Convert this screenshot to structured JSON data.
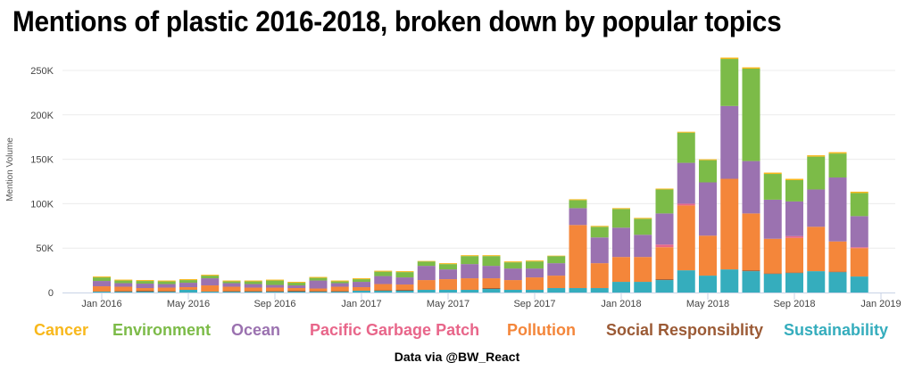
{
  "chart_data": {
    "type": "bar",
    "stacked": true,
    "title": "Mentions of plastic 2016-2018, broken down by popular topics",
    "xlabel": "",
    "ylabel": "Mention Volume",
    "ylim": [
      0,
      260000
    ],
    "yticks": [
      0,
      50000,
      100000,
      150000,
      200000,
      250000
    ],
    "ytick_labels": [
      "0",
      "50K",
      "100K",
      "150K",
      "200K",
      "250K"
    ],
    "xtick_labels": [
      {
        "label": "Jan 2016",
        "month_index": 0
      },
      {
        "label": "May 2016",
        "month_index": 4
      },
      {
        "label": "Sep 2016",
        "month_index": 8
      },
      {
        "label": "Jan 2017",
        "month_index": 12
      },
      {
        "label": "May 2017",
        "month_index": 16
      },
      {
        "label": "Sep 2017",
        "month_index": 20
      },
      {
        "label": "Jan 2018",
        "month_index": 24
      },
      {
        "label": "May 2018",
        "month_index": 28
      },
      {
        "label": "Sep 2018",
        "month_index": 32
      },
      {
        "label": "Jan 2019",
        "month_index": 36
      }
    ],
    "grid": true,
    "legend_position": "bottom",
    "categories": [
      "Jan 2016",
      "Feb 2016",
      "Mar 2016",
      "Apr 2016",
      "May 2016",
      "Jun 2016",
      "Jul 2016",
      "Aug 2016",
      "Sep 2016",
      "Oct 2016",
      "Nov 2016",
      "Dec 2016",
      "Jan 2017",
      "Feb 2017",
      "Mar 2017",
      "Apr 2017",
      "May 2017",
      "Jun 2017",
      "Jul 2017",
      "Aug 2017",
      "Sep 2017",
      "Oct 2017",
      "Nov 2017",
      "Dec 2017",
      "Jan 2018",
      "Feb 2018",
      "Mar 2018",
      "Apr 2018",
      "May 2018",
      "Jun 2018",
      "Jul 2018",
      "Aug 2018",
      "Sep 2018",
      "Oct 2018",
      "Nov 2018",
      "Dec 2018"
    ],
    "series": [
      {
        "name": "Sustainability",
        "color": "#35adbd",
        "values": [
          1000,
          1000,
          1000,
          1000,
          3000,
          1000,
          1000,
          1000,
          1000,
          1000,
          1000,
          1000,
          2000,
          2000,
          2000,
          3000,
          3000,
          3000,
          4000,
          3000,
          3000,
          5000,
          5000,
          5000,
          12000,
          12000,
          14000,
          25000,
          19000,
          26000,
          24000,
          21000,
          22000,
          24000,
          23000,
          18000
        ]
      },
      {
        "name": "Social Responsiblity",
        "color": "#9b5a35",
        "values": [
          0,
          500,
          1000,
          500,
          0,
          0,
          500,
          500,
          500,
          1000,
          500,
          500,
          0,
          500,
          1000,
          0,
          0,
          0,
          1000,
          0,
          0,
          0,
          0,
          0,
          0,
          0,
          1000,
          0,
          0,
          0,
          1000,
          500,
          500,
          0,
          500,
          0
        ]
      },
      {
        "name": "Pollution",
        "color": "#f4863a",
        "values": [
          6000,
          5000,
          3000,
          4000,
          3000,
          7000,
          5000,
          4000,
          4000,
          3000,
          3000,
          5000,
          4000,
          7000,
          6000,
          11000,
          12000,
          13000,
          11000,
          11000,
          14000,
          14000,
          71000,
          28000,
          28000,
          28000,
          36000,
          73000,
          45000,
          102000,
          64000,
          39000,
          39000,
          50000,
          34000,
          32000
        ]
      },
      {
        "name": "Pacific Garbage Patch",
        "color": "#e8668a",
        "values": [
          0,
          0,
          0,
          0,
          0,
          0,
          0,
          0,
          0,
          0,
          0,
          0,
          0,
          0,
          0,
          0,
          0,
          0,
          0,
          0,
          0,
          0,
          0,
          0,
          0,
          0,
          3000,
          2000,
          0,
          0,
          0,
          0,
          2000,
          0,
          0,
          1000
        ]
      },
      {
        "name": "Ocean",
        "color": "#9b72b0",
        "values": [
          6000,
          4000,
          5000,
          4000,
          5000,
          8000,
          4000,
          4000,
          3000,
          3000,
          9000,
          4000,
          6000,
          9000,
          8000,
          16000,
          11000,
          16000,
          14000,
          13000,
          10000,
          14000,
          19000,
          29000,
          33000,
          25000,
          35000,
          46000,
          60000,
          82000,
          59000,
          44000,
          39000,
          42000,
          72000,
          35000
        ]
      },
      {
        "name": "Environment",
        "color": "#7cbb48",
        "values": [
          4000,
          3000,
          3000,
          3000,
          3000,
          3000,
          2000,
          3000,
          5000,
          3000,
          3000,
          2000,
          3000,
          5000,
          6000,
          5000,
          6000,
          9000,
          11000,
          7000,
          8000,
          8000,
          9000,
          12000,
          21000,
          18000,
          27000,
          34000,
          25000,
          53000,
          104000,
          29000,
          24000,
          37000,
          27000,
          26000
        ]
      },
      {
        "name": "Cancer",
        "color": "#f8b81c",
        "values": [
          1000,
          1000,
          1000,
          1000,
          1000,
          1000,
          1000,
          1000,
          1000,
          1000,
          1000,
          1000,
          1000,
          1000,
          1000,
          500,
          1000,
          1000,
          1000,
          1000,
          1000,
          500,
          1000,
          1000,
          1000,
          1000,
          1000,
          1000,
          1000,
          1500,
          1500,
          1500,
          1500,
          1500,
          1500,
          1500
        ]
      }
    ]
  },
  "legend": {
    "items": [
      {
        "label": "Cancer",
        "color": "#f8b81c"
      },
      {
        "label": "Environment",
        "color": "#7cbb48"
      },
      {
        "label": "Ocean",
        "color": "#9b72b0"
      },
      {
        "label": "Pacific Garbage Patch",
        "color": "#e8668a"
      },
      {
        "label": "Pollution",
        "color": "#f4863a"
      },
      {
        "label": "Social Responsiblity",
        "color": "#9b5a35"
      },
      {
        "label": "Sustainability",
        "color": "#35adbd"
      }
    ]
  },
  "footer": "Data via @BW_React"
}
